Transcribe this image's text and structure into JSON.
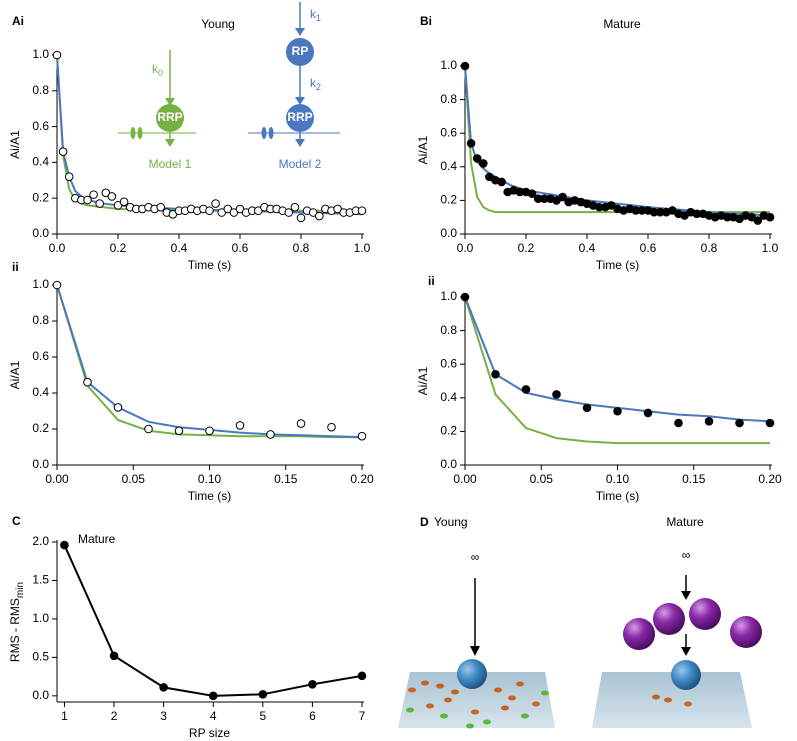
{
  "chart_data": [
    {
      "type": "line",
      "panel_label": "Ai",
      "title": "Young",
      "xlabel": "Time (s)",
      "ylabel": "Ai/A1",
      "xlim": [
        0,
        1
      ],
      "ylim": [
        0,
        1
      ],
      "xticks": [
        {
          "value": 0,
          "label": "0.0"
        },
        0.2,
        0.4,
        0.6,
        0.8,
        {
          "value": 1,
          "label": "1.0"
        }
      ],
      "yticks": [
        {
          "value": 0,
          "label": "0.0"
        },
        0.2,
        0.4,
        0.6,
        0.8,
        {
          "value": 1,
          "label": "1.0"
        }
      ],
      "series": [
        {
          "color": "#77b043",
          "mode": "line",
          "x": [
            0,
            0.02,
            0.04,
            0.06,
            0.08,
            0.1,
            0.15,
            0.2,
            0.3,
            0.4,
            0.6,
            0.8,
            1
          ],
          "values": [
            1,
            0.44,
            0.25,
            0.19,
            0.17,
            0.16,
            0.15,
            0.14,
            0.135,
            0.13,
            0.13,
            0.13,
            0.13
          ]
        },
        {
          "color": "#4a78bf",
          "mode": "line",
          "x": [
            0,
            0.02,
            0.04,
            0.06,
            0.08,
            0.1,
            0.15,
            0.2,
            0.3,
            0.4,
            0.6,
            0.8,
            1
          ],
          "values": [
            1,
            0.46,
            0.32,
            0.24,
            0.21,
            0.19,
            0.17,
            0.16,
            0.15,
            0.14,
            0.13,
            0.12,
            0.11
          ]
        },
        {
          "color": "#000000",
          "mode": "markers",
          "marker": "open",
          "x": [
            0,
            0.02,
            0.04,
            0.06,
            0.08,
            0.1,
            0.12,
            0.14,
            0.16,
            0.18,
            0.2,
            0.22,
            0.24,
            0.26,
            0.28,
            0.3,
            0.32,
            0.34,
            0.36,
            0.38,
            0.4,
            0.42,
            0.44,
            0.46,
            0.48,
            0.5,
            0.52,
            0.54,
            0.56,
            0.58,
            0.6,
            0.62,
            0.64,
            0.66,
            0.68,
            0.7,
            0.72,
            0.74,
            0.76,
            0.78,
            0.8,
            0.82,
            0.84,
            0.86,
            0.88,
            0.9,
            0.92,
            0.94,
            0.96,
            0.98,
            1
          ],
          "values": [
            1,
            0.46,
            0.32,
            0.2,
            0.19,
            0.19,
            0.22,
            0.17,
            0.23,
            0.21,
            0.16,
            0.18,
            0.15,
            0.14,
            0.14,
            0.15,
            0.14,
            0.15,
            0.12,
            0.11,
            0.13,
            0.13,
            0.14,
            0.13,
            0.14,
            0.13,
            0.17,
            0.12,
            0.14,
            0.12,
            0.14,
            0.12,
            0.13,
            0.13,
            0.15,
            0.14,
            0.14,
            0.13,
            0.12,
            0.15,
            0.09,
            0.13,
            0.12,
            0.1,
            0.14,
            0.13,
            0.14,
            0.12,
            0.12,
            0.13,
            0.13
          ]
        }
      ],
      "schemes": [
        {
          "rate": "k",
          "rate_sub": "0",
          "pool": "RRP",
          "label": "Model 1"
        },
        {
          "rate1": "k",
          "rate1_sub": "1",
          "reserve": "RP",
          "rate2": "k",
          "rate2_sub": "2",
          "pool": "RRP",
          "label": "Model 2"
        }
      ]
    },
    {
      "type": "line",
      "panel_label": "Bi",
      "title": "Mature",
      "xlabel": "Time (s)",
      "ylabel": "Ai/A1",
      "xlim": [
        0,
        1
      ],
      "ylim": [
        0,
        1
      ],
      "xticks": [
        {
          "value": 0,
          "label": "0.0"
        },
        0.2,
        0.4,
        0.6,
        0.8,
        {
          "value": 1,
          "label": "1.0"
        }
      ],
      "yticks": [
        {
          "value": 0,
          "label": "0.0"
        },
        0.2,
        0.4,
        0.6,
        0.8,
        {
          "value": 1,
          "label": "1.0"
        }
      ],
      "series": [
        {
          "color": "#77b043",
          "mode": "line",
          "x": [
            0,
            0.02,
            0.04,
            0.06,
            0.08,
            0.1,
            0.15,
            0.2,
            0.3,
            0.4,
            0.6,
            0.8,
            1
          ],
          "values": [
            1,
            0.42,
            0.22,
            0.16,
            0.14,
            0.13,
            0.13,
            0.13,
            0.13,
            0.13,
            0.13,
            0.13,
            0.13
          ]
        },
        {
          "color": "#4a78bf",
          "mode": "line",
          "x": [
            0,
            0.02,
            0.04,
            0.06,
            0.08,
            0.1,
            0.15,
            0.2,
            0.3,
            0.4,
            0.6,
            0.8,
            1
          ],
          "values": [
            1,
            0.54,
            0.43,
            0.39,
            0.36,
            0.34,
            0.29,
            0.26,
            0.23,
            0.2,
            0.16,
            0.13,
            0.11
          ]
        },
        {
          "color": "#000000",
          "mode": "markers",
          "marker": "filled",
          "x": [
            0,
            0.02,
            0.04,
            0.06,
            0.08,
            0.1,
            0.12,
            0.14,
            0.16,
            0.18,
            0.2,
            0.22,
            0.24,
            0.26,
            0.28,
            0.3,
            0.32,
            0.34,
            0.36,
            0.38,
            0.4,
            0.42,
            0.44,
            0.46,
            0.48,
            0.5,
            0.52,
            0.54,
            0.56,
            0.58,
            0.6,
            0.62,
            0.64,
            0.66,
            0.68,
            0.7,
            0.72,
            0.74,
            0.76,
            0.78,
            0.8,
            0.82,
            0.84,
            0.86,
            0.88,
            0.9,
            0.92,
            0.94,
            0.96,
            0.98,
            1
          ],
          "values": [
            1,
            0.54,
            0.45,
            0.42,
            0.34,
            0.32,
            0.31,
            0.25,
            0.26,
            0.25,
            0.25,
            0.24,
            0.21,
            0.21,
            0.21,
            0.2,
            0.22,
            0.19,
            0.2,
            0.19,
            0.18,
            0.17,
            0.16,
            0.16,
            0.17,
            0.15,
            0.14,
            0.15,
            0.14,
            0.14,
            0.14,
            0.13,
            0.13,
            0.13,
            0.14,
            0.12,
            0.11,
            0.13,
            0.12,
            0.12,
            0.11,
            0.1,
            0.11,
            0.1,
            0.1,
            0.09,
            0.11,
            0.1,
            0.08,
            0.11,
            0.1
          ]
        }
      ]
    },
    {
      "type": "line",
      "panel_label": "ii",
      "xlabel": "Time (s)",
      "ylabel": "Ai/A1",
      "xlim": [
        0,
        0.2
      ],
      "ylim": [
        0,
        1
      ],
      "xticks": [
        {
          "value": 0,
          "label": "0.00"
        },
        0.05,
        {
          "value": 0.1,
          "label": "0.10"
        },
        0.15,
        {
          "value": 0.2,
          "label": "0.20"
        }
      ],
      "yticks": [
        {
          "value": 0,
          "label": "0.0"
        },
        0.2,
        0.4,
        0.6,
        0.8,
        {
          "value": 1,
          "label": "1.0"
        }
      ],
      "series": [
        {
          "color": "#77b043",
          "mode": "line",
          "x": [
            0,
            0.02,
            0.04,
            0.06,
            0.08,
            0.1,
            0.12,
            0.14,
            0.16,
            0.18,
            0.2
          ],
          "values": [
            1,
            0.44,
            0.25,
            0.19,
            0.17,
            0.165,
            0.16,
            0.16,
            0.16,
            0.155,
            0.155
          ]
        },
        {
          "color": "#4a78bf",
          "mode": "line",
          "x": [
            0,
            0.02,
            0.04,
            0.06,
            0.08,
            0.1,
            0.12,
            0.14,
            0.16,
            0.18,
            0.2
          ],
          "values": [
            1,
            0.46,
            0.32,
            0.24,
            0.21,
            0.195,
            0.18,
            0.17,
            0.165,
            0.16,
            0.155
          ]
        },
        {
          "color": "#000000",
          "mode": "markers",
          "marker": "open",
          "x": [
            0,
            0.02,
            0.04,
            0.06,
            0.08,
            0.1,
            0.12,
            0.14,
            0.16,
            0.18,
            0.2
          ],
          "values": [
            1,
            0.46,
            0.32,
            0.2,
            0.19,
            0.19,
            0.22,
            0.17,
            0.23,
            0.21,
            0.16
          ]
        }
      ]
    },
    {
      "type": "line",
      "panel_label": "ii",
      "xlabel": "Time (s)",
      "ylabel": "Ai/A1",
      "xlim": [
        0,
        0.2
      ],
      "ylim": [
        0,
        1
      ],
      "xticks": [
        {
          "value": 0,
          "label": "0.00"
        },
        0.05,
        {
          "value": 0.1,
          "label": "0.10"
        },
        0.15,
        {
          "value": 0.2,
          "label": "0.20"
        }
      ],
      "yticks": [
        {
          "value": 0,
          "label": "0.0"
        },
        0.2,
        0.4,
        0.6,
        0.8,
        {
          "value": 1,
          "label": "1.0"
        }
      ],
      "series": [
        {
          "color": "#77b043",
          "mode": "line",
          "x": [
            0,
            0.02,
            0.04,
            0.06,
            0.08,
            0.1,
            0.12,
            0.14,
            0.16,
            0.18,
            0.2
          ],
          "values": [
            1,
            0.42,
            0.22,
            0.16,
            0.14,
            0.13,
            0.13,
            0.13,
            0.13,
            0.13,
            0.13
          ]
        },
        {
          "color": "#4a78bf",
          "mode": "line",
          "x": [
            0,
            0.02,
            0.04,
            0.06,
            0.08,
            0.1,
            0.12,
            0.14,
            0.16,
            0.18,
            0.2
          ],
          "values": [
            1,
            0.54,
            0.43,
            0.39,
            0.36,
            0.34,
            0.32,
            0.3,
            0.29,
            0.27,
            0.26
          ]
        },
        {
          "color": "#000000",
          "mode": "markers",
          "marker": "filled",
          "x": [
            0,
            0.02,
            0.04,
            0.06,
            0.08,
            0.1,
            0.12,
            0.14,
            0.16,
            0.18,
            0.2
          ],
          "values": [
            1,
            0.54,
            0.45,
            0.42,
            0.34,
            0.32,
            0.31,
            0.25,
            0.26,
            0.25,
            0.25
          ]
        }
      ]
    },
    {
      "type": "line",
      "panel_label": "C",
      "xlabel": "RP size",
      "ylabel": "RMS - RMS",
      "ylabel_sub": "min",
      "annotation": "Mature",
      "xlim": [
        0.85,
        7
      ],
      "ylim": [
        -0.08,
        2
      ],
      "xticks": [
        1,
        2,
        3,
        4,
        5,
        6,
        7
      ],
      "yticks": [
        {
          "value": 0,
          "label": "0.0"
        },
        0.5,
        {
          "value": 1,
          "label": "1.0"
        },
        1.5,
        {
          "value": 2,
          "label": "2.0"
        }
      ],
      "series": [
        {
          "color": "#000000",
          "mode": "line+markers",
          "marker": "filled",
          "x": [
            1,
            2,
            3,
            4,
            5,
            6,
            7
          ],
          "values": [
            1.96,
            0.52,
            0.11,
            0,
            0.02,
            0.15,
            0.26
          ]
        }
      ]
    }
  ],
  "diagram": {
    "panel_label": "D",
    "left": {
      "title": "Young",
      "symbol": "∞"
    },
    "right": {
      "title": "Mature",
      "symbol": "∞"
    }
  }
}
